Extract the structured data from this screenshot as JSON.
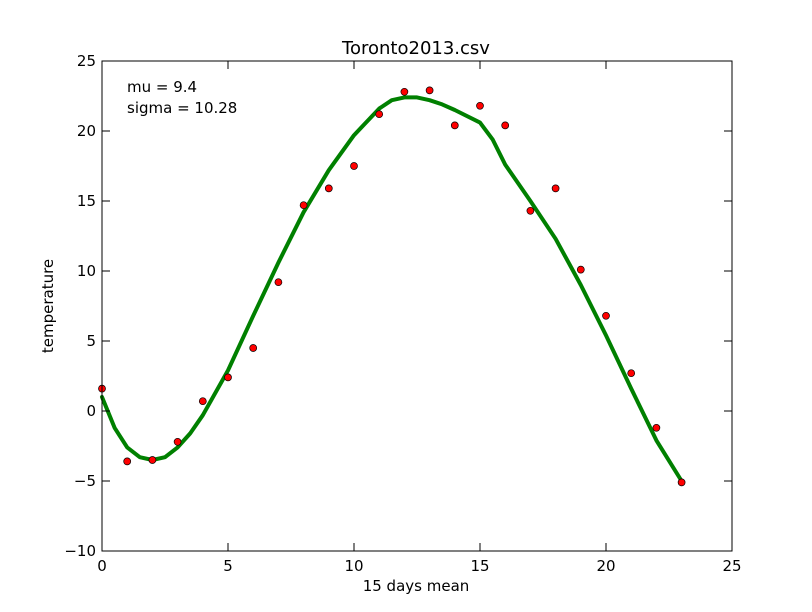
{
  "chart_data": {
    "type": "scatter",
    "title": "Toronto2013.csv",
    "xlabel": "15 days mean",
    "ylabel": "temperature",
    "xlim": [
      0,
      25
    ],
    "ylim": [
      -10,
      25
    ],
    "x_ticks": [
      0,
      5,
      10,
      15,
      20,
      25
    ],
    "y_ticks": [
      -10,
      -5,
      0,
      5,
      10,
      15,
      20,
      25
    ],
    "x_tick_labels": [
      "0",
      "5",
      "10",
      "15",
      "20",
      "25"
    ],
    "y_tick_labels": [
      "−10",
      "−5",
      "0",
      "5",
      "10",
      "15",
      "20",
      "25"
    ],
    "grid": false,
    "annotations": [
      "mu = 9.4",
      "sigma = 10.28"
    ],
    "series": [
      {
        "kind": "scatter",
        "marker_color": "#ff0000",
        "x": [
          0,
          1,
          2,
          3,
          4,
          5,
          6,
          7,
          8,
          9,
          10,
          11,
          12,
          13,
          14,
          15,
          16,
          17,
          18,
          19,
          20,
          21,
          22,
          23
        ],
        "y": [
          1.6,
          -3.6,
          -3.5,
          -2.2,
          0.7,
          2.4,
          4.5,
          9.2,
          14.7,
          15.9,
          17.5,
          21.2,
          22.8,
          22.9,
          20.4,
          21.8,
          20.4,
          14.3,
          15.9,
          10.1,
          6.8,
          2.7,
          -1.2,
          -5.1
        ]
      },
      {
        "kind": "line",
        "color": "#008000",
        "x": [
          0,
          0.5,
          1,
          1.5,
          2,
          2.5,
          3,
          3.5,
          4,
          5,
          6,
          7,
          8,
          9,
          10,
          11,
          11.5,
          12,
          12.5,
          13,
          13.5,
          14,
          15,
          15.5,
          16,
          17,
          18,
          19,
          20,
          21,
          22,
          23
        ],
        "y": [
          1.0,
          -1.2,
          -2.6,
          -3.3,
          -3.5,
          -3.3,
          -2.6,
          -1.6,
          -0.3,
          2.9,
          6.8,
          10.6,
          14.2,
          17.2,
          19.7,
          21.6,
          22.2,
          22.4,
          22.4,
          22.2,
          21.9,
          21.5,
          20.6,
          19.4,
          17.6,
          15.0,
          12.3,
          9.0,
          5.4,
          1.6,
          -2.1,
          -5.0
        ]
      }
    ]
  }
}
